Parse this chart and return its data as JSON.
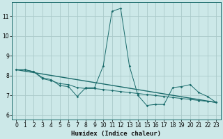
{
  "xlabel": "Humidex (Indice chaleur)",
  "background_color": "#cce8e8",
  "grid_color": "#aacaca",
  "line_color": "#1a6b6b",
  "xlim": [
    -0.5,
    23.5
  ],
  "ylim": [
    5.8,
    11.7
  ],
  "yticks": [
    6,
    7,
    8,
    9,
    10,
    11
  ],
  "xticks": [
    0,
    1,
    2,
    3,
    4,
    5,
    6,
    7,
    8,
    9,
    10,
    11,
    12,
    13,
    14,
    15,
    16,
    17,
    18,
    19,
    20,
    21,
    22,
    23
  ],
  "series1_x": [
    0,
    1,
    2,
    3,
    4,
    5,
    6,
    7,
    8,
    9,
    10,
    11,
    12,
    13,
    14,
    15,
    16,
    17,
    18,
    19,
    20,
    21,
    22,
    23
  ],
  "series1_y": [
    8.3,
    8.3,
    8.2,
    7.9,
    7.8,
    7.5,
    7.45,
    6.95,
    7.4,
    7.4,
    8.5,
    11.25,
    11.4,
    8.5,
    7.0,
    6.5,
    6.55,
    6.55,
    7.4,
    7.45,
    7.55,
    7.15,
    6.95,
    6.65
  ],
  "series2_x": [
    0,
    1,
    2,
    3,
    4,
    5,
    6,
    7,
    8,
    9,
    10,
    11,
    12,
    13,
    14,
    15,
    16,
    17,
    18,
    19,
    20,
    21,
    22,
    23
  ],
  "series2_y": [
    8.3,
    8.3,
    8.2,
    7.85,
    7.75,
    7.6,
    7.55,
    7.4,
    7.35,
    7.35,
    7.3,
    7.25,
    7.2,
    7.15,
    7.1,
    7.05,
    7.0,
    6.95,
    6.9,
    6.85,
    6.8,
    6.75,
    6.7,
    6.65
  ],
  "series3_x": [
    0,
    23
  ],
  "series3_y": [
    8.3,
    6.65
  ]
}
